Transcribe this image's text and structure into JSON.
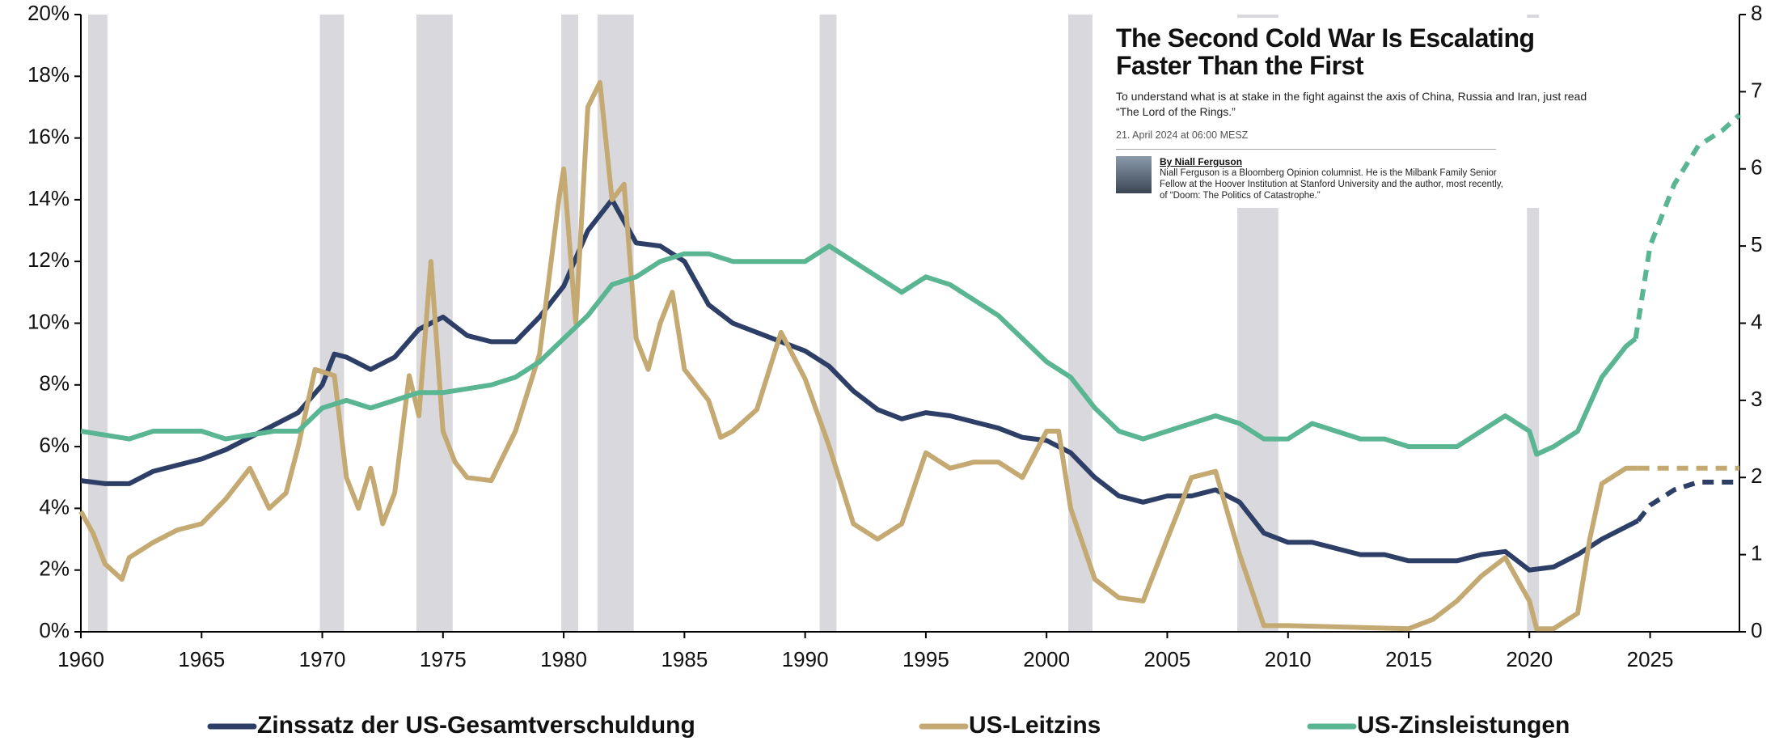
{
  "chart_data": {
    "type": "line",
    "xlim": [
      1960,
      2028.7
    ],
    "xticks": [
      1960,
      1965,
      1970,
      1975,
      1980,
      1985,
      1990,
      1995,
      2000,
      2005,
      2010,
      2015,
      2020,
      2025
    ],
    "ylim": [
      0,
      20
    ],
    "yticks": [
      {
        "value": 0,
        "label": "0%"
      },
      {
        "value": 2,
        "label": "2%"
      },
      {
        "value": 4,
        "label": "4%"
      },
      {
        "value": 6,
        "label": "6%"
      },
      {
        "value": 8,
        "label": "8%"
      },
      {
        "value": 10,
        "label": "10%"
      },
      {
        "value": 12,
        "label": "12%"
      },
      {
        "value": 14,
        "label": "14%"
      },
      {
        "value": 16,
        "label": "16%"
      },
      {
        "value": 18,
        "label": "18%"
      },
      {
        "value": 20,
        "label": "20%"
      }
    ],
    "y2lim": [
      0,
      8
    ],
    "y2ticks": [
      0,
      1,
      2,
      3,
      4,
      5,
      6,
      7,
      8
    ],
    "shaded_periods": [
      [
        1960.3,
        1961.1
      ],
      [
        1969.9,
        1970.9
      ],
      [
        1973.9,
        1975.4
      ],
      [
        1979.9,
        1980.6
      ],
      [
        1981.4,
        1982.9
      ],
      [
        1990.6,
        1991.3
      ],
      [
        2000.9,
        2001.9
      ],
      [
        2007.9,
        2009.6
      ],
      [
        2019.9,
        2020.4
      ]
    ],
    "shade_color": "#d9d8dc",
    "series": [
      {
        "name": "Zinssatz der US-Gesamtverschuldung",
        "color": "#2d3f66",
        "forecast_from": 2024.5,
        "x": [
          1960,
          1961,
          1962,
          1963,
          1964,
          1965,
          1966,
          1967,
          1968,
          1969,
          1970,
          1970.5,
          1971,
          1972,
          1973,
          1974,
          1975,
          1976,
          1977,
          1978,
          1979,
          1980,
          1981,
          1982,
          1983,
          1984,
          1985,
          1986,
          1987,
          1988,
          1989,
          1990,
          1991,
          1992,
          1993,
          1994,
          1995,
          1996,
          1997,
          1998,
          1999,
          2000,
          2001,
          2002,
          2003,
          2004,
          2005,
          2006,
          2007,
          2008,
          2009,
          2010,
          2011,
          2012,
          2013,
          2014,
          2015,
          2016,
          2017,
          2018,
          2019,
          2020,
          2021,
          2022,
          2023,
          2024.5,
          2025,
          2026,
          2027,
          2028.7
        ],
        "values": [
          4.9,
          4.8,
          4.8,
          5.2,
          5.4,
          5.6,
          5.9,
          6.3,
          6.7,
          7.1,
          8.0,
          9.0,
          8.9,
          8.5,
          8.9,
          9.8,
          10.2,
          9.6,
          9.4,
          9.4,
          10.2,
          11.2,
          13.0,
          14.0,
          12.6,
          12.5,
          12.0,
          10.6,
          10.0,
          9.7,
          9.4,
          9.1,
          8.6,
          7.8,
          7.2,
          6.9,
          7.1,
          7.0,
          6.8,
          6.6,
          6.3,
          6.2,
          5.8,
          5.0,
          4.4,
          4.2,
          4.4,
          4.4,
          4.6,
          4.2,
          3.2,
          2.9,
          2.9,
          2.7,
          2.5,
          2.5,
          2.3,
          2.3,
          2.3,
          2.5,
          2.6,
          2.0,
          2.1,
          2.5,
          3.0,
          3.6,
          4.1,
          4.6,
          4.85,
          4.85
        ]
      },
      {
        "name": "US-Leitzins",
        "color": "#c4aa72",
        "forecast_from": 2024.5,
        "x": [
          1960,
          1960.5,
          1961,
          1961.7,
          1962,
          1963,
          1964,
          1965,
          1966,
          1967,
          1967.8,
          1968.5,
          1969,
          1969.7,
          1970.5,
          1971,
          1971.5,
          1972,
          1972.5,
          1973,
          1973.6,
          1974,
          1974.5,
          1975,
          1975.5,
          1976,
          1977,
          1978,
          1979,
          1979.8,
          1980,
          1980.5,
          1981,
          1981.5,
          1982,
          1982.5,
          1983,
          1983.5,
          1984,
          1984.5,
          1985,
          1986,
          1986.5,
          1987,
          1988,
          1989,
          1990,
          1991,
          1992,
          1993,
          1994,
          1995,
          1996,
          1997,
          1998,
          1999,
          2000,
          2000.5,
          2001,
          2002,
          2003,
          2004,
          2005,
          2006,
          2007,
          2008,
          2009,
          2010,
          2015,
          2016,
          2017,
          2018,
          2019,
          2020,
          2020.3,
          2021,
          2022,
          2022.5,
          2023,
          2024,
          2024.5,
          2025,
          2028.7
        ],
        "values": [
          3.9,
          3.2,
          2.2,
          1.7,
          2.4,
          2.9,
          3.3,
          3.5,
          4.3,
          5.3,
          4.0,
          4.5,
          6.0,
          8.5,
          8.3,
          5.0,
          4.0,
          5.3,
          3.5,
          4.5,
          8.3,
          7.0,
          12.0,
          6.5,
          5.5,
          5.0,
          4.9,
          6.5,
          9.0,
          14.0,
          15.0,
          10.0,
          17.0,
          17.8,
          14.0,
          14.5,
          9.5,
          8.5,
          10.0,
          11.0,
          8.5,
          7.5,
          6.3,
          6.5,
          7.2,
          9.7,
          8.2,
          6.0,
          3.5,
          3.0,
          3.5,
          5.8,
          5.3,
          5.5,
          5.5,
          5.0,
          6.5,
          6.5,
          4.0,
          1.7,
          1.1,
          1.0,
          3.0,
          5.0,
          5.2,
          2.5,
          0.2,
          0.2,
          0.1,
          0.4,
          1.0,
          1.8,
          2.4,
          1.0,
          0.1,
          0.1,
          0.6,
          3.0,
          4.8,
          5.3,
          5.3,
          5.3,
          5.3
        ]
      },
      {
        "name": "US-Zinsleistungen",
        "color": "#5ab593",
        "axis": "y2",
        "forecast_from": 2024.4,
        "x": [
          1960,
          1962,
          1963,
          1965,
          1966,
          1968,
          1969,
          1970,
          1971,
          1972,
          1974,
          1975,
          1977,
          1978,
          1979,
          1980,
          1981,
          1982,
          1983,
          1984,
          1985,
          1986,
          1987,
          1988,
          1989,
          1990,
          1991,
          1992,
          1993,
          1994,
          1995,
          1996,
          1997,
          1998,
          1999,
          2000,
          2001,
          2002,
          2003,
          2004,
          2005,
          2006,
          2007,
          2008,
          2009,
          2010,
          2011,
          2012,
          2013,
          2014,
          2015,
          2016,
          2017,
          2018,
          2019,
          2020,
          2020.3,
          2021,
          2022,
          2023,
          2024,
          2024.4,
          2025,
          2026,
          2027,
          2028,
          2028.7
        ],
        "values": [
          2.6,
          2.5,
          2.6,
          2.6,
          2.5,
          2.6,
          2.6,
          2.9,
          3.0,
          2.9,
          3.1,
          3.1,
          3.2,
          3.3,
          3.5,
          3.8,
          4.1,
          4.5,
          4.6,
          4.8,
          4.9,
          4.9,
          4.8,
          4.8,
          4.8,
          4.8,
          5.0,
          4.8,
          4.6,
          4.4,
          4.6,
          4.5,
          4.3,
          4.1,
          3.8,
          3.5,
          3.3,
          2.9,
          2.6,
          2.5,
          2.6,
          2.7,
          2.8,
          2.7,
          2.5,
          2.5,
          2.7,
          2.6,
          2.5,
          2.5,
          2.4,
          2.4,
          2.4,
          2.6,
          2.8,
          2.6,
          2.3,
          2.4,
          2.6,
          3.3,
          3.7,
          3.8,
          5.0,
          5.8,
          6.3,
          6.5,
          6.7
        ]
      }
    ]
  },
  "article": {
    "title": "The Second Cold War Is Escalating Faster Than the First",
    "subtitle": "To understand what is at stake in the fight against the axis of China, Russia and Iran, just read “The Lord of the Rings.”",
    "date": "21. April 2024 at 06:00 MESZ",
    "byline": "By Niall Ferguson",
    "bio": "Niall Ferguson is a Bloomberg Opinion columnist. He is the Milbank Family Senior Fellow at the Hoover Institution at Stanford University and the author, most recently, of “Doom: The Politics of Catastrophe.”"
  }
}
